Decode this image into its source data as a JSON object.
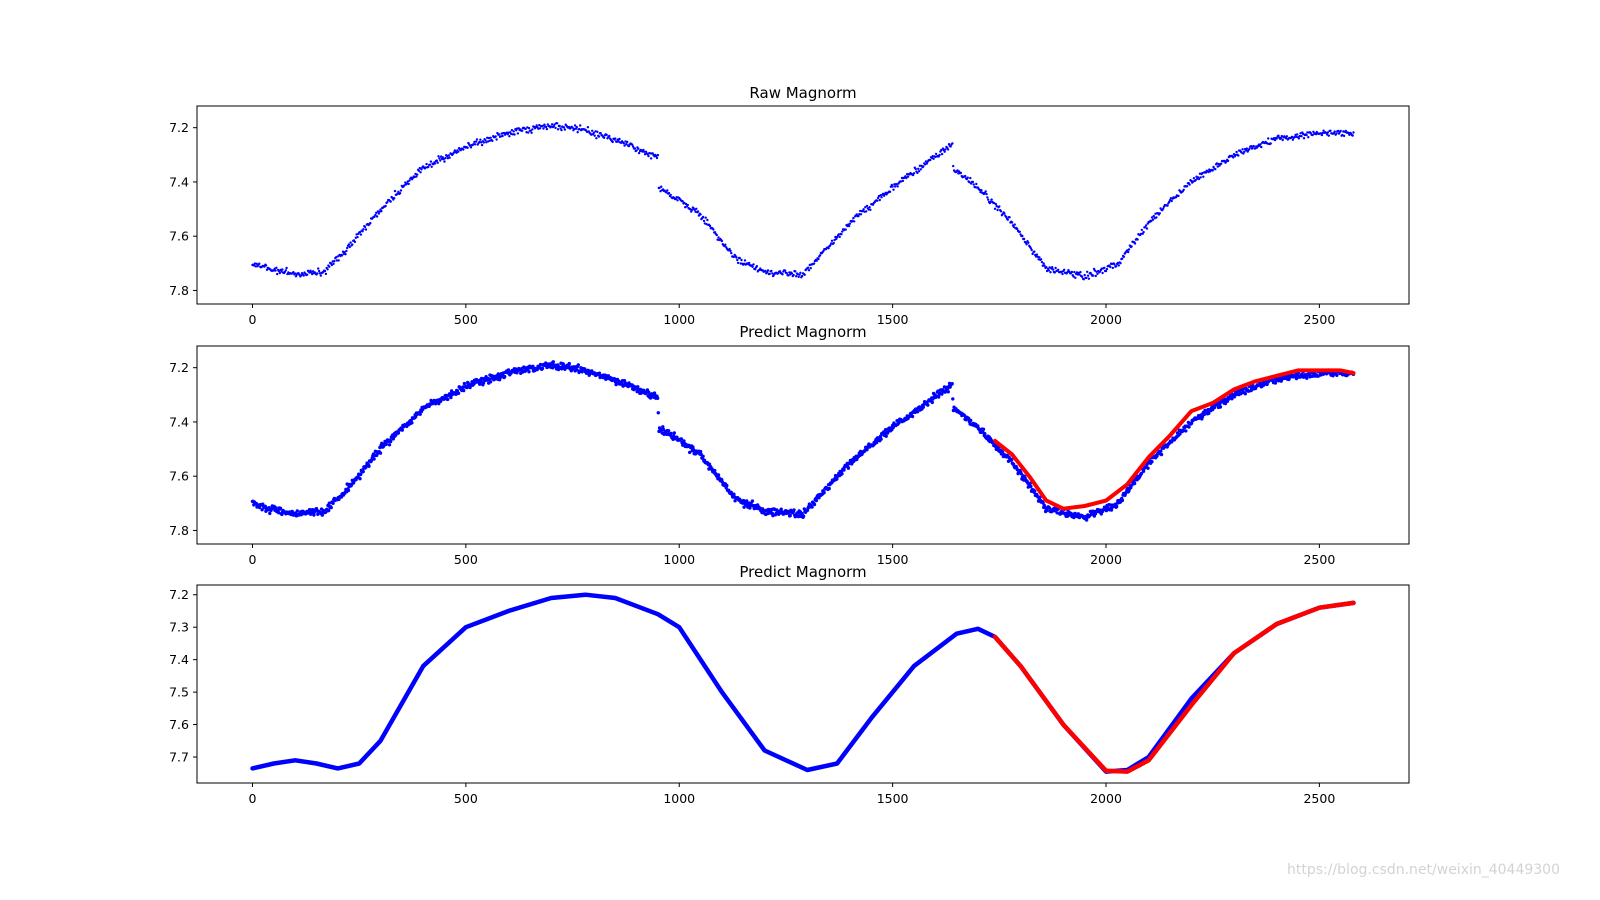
{
  "watermark": "https://blog.csdn.net/weixin_40449300",
  "colors": {
    "raw": "#0000ff",
    "predict": "#ff0000"
  },
  "chart_data": [
    {
      "type": "scatter",
      "title": "Raw Magnorm",
      "xlim": [
        -130,
        2710
      ],
      "ylim": [
        7.85,
        7.12
      ],
      "y_inverted": true,
      "xticks": [
        0,
        500,
        1000,
        1500,
        2000,
        2500
      ],
      "yticks": [
        7.2,
        7.4,
        7.6,
        7.8
      ],
      "ytick_labels": [
        "7.2",
        "7.4",
        "7.6",
        "7.8"
      ],
      "series": [
        {
          "color": "#0000ff",
          "style": "points",
          "noise": 0.012,
          "x_range": [
            0,
            2580
          ],
          "step": 2,
          "breakpoints": [
            [
              0,
              7.7
            ],
            [
              40,
              7.72
            ],
            [
              100,
              7.74
            ],
            [
              170,
              7.73
            ],
            [
              220,
              7.65
            ],
            [
              300,
              7.5
            ],
            [
              400,
              7.35
            ],
            [
              500,
              7.27
            ],
            [
              600,
              7.22
            ],
            [
              700,
              7.19
            ],
            [
              780,
              7.21
            ],
            [
              860,
              7.25
            ],
            [
              950,
              7.31
            ],
            [
              952,
              7.42
            ],
            [
              1050,
              7.52
            ],
            [
              1130,
              7.68
            ],
            [
              1200,
              7.73
            ],
            [
              1290,
              7.74
            ],
            [
              1400,
              7.55
            ],
            [
              1500,
              7.42
            ],
            [
              1580,
              7.33
            ],
            [
              1640,
              7.26
            ],
            [
              1642,
              7.35
            ],
            [
              1700,
              7.42
            ],
            [
              1780,
              7.55
            ],
            [
              1860,
              7.72
            ],
            [
              1950,
              7.75
            ],
            [
              2030,
              7.7
            ],
            [
              2100,
              7.55
            ],
            [
              2200,
              7.4
            ],
            [
              2300,
              7.3
            ],
            [
              2400,
              7.24
            ],
            [
              2500,
              7.22
            ],
            [
              2580,
              7.22
            ]
          ]
        }
      ]
    },
    {
      "type": "scatter",
      "title": "Predict Magnorm",
      "xlim": [
        -130,
        2710
      ],
      "ylim": [
        7.85,
        7.12
      ],
      "y_inverted": true,
      "xticks": [
        0,
        500,
        1000,
        1500,
        2000,
        2500
      ],
      "yticks": [
        7.2,
        7.4,
        7.6,
        7.8
      ],
      "ytick_labels": [
        "7.2",
        "7.4",
        "7.6",
        "7.8"
      ],
      "series": [
        {
          "color": "#0000ff",
          "style": "points",
          "noise": 0.013,
          "x_range": [
            0,
            2580
          ],
          "step": 1.5,
          "breakpoints": [
            [
              0,
              7.7
            ],
            [
              40,
              7.72
            ],
            [
              100,
              7.74
            ],
            [
              170,
              7.73
            ],
            [
              220,
              7.65
            ],
            [
              300,
              7.5
            ],
            [
              400,
              7.35
            ],
            [
              500,
              7.27
            ],
            [
              600,
              7.22
            ],
            [
              700,
              7.19
            ],
            [
              780,
              7.21
            ],
            [
              860,
              7.25
            ],
            [
              950,
              7.31
            ],
            [
              952,
              7.42
            ],
            [
              1050,
              7.52
            ],
            [
              1130,
              7.68
            ],
            [
              1200,
              7.73
            ],
            [
              1290,
              7.74
            ],
            [
              1400,
              7.55
            ],
            [
              1500,
              7.42
            ],
            [
              1580,
              7.33
            ],
            [
              1640,
              7.26
            ],
            [
              1642,
              7.35
            ],
            [
              1700,
              7.42
            ],
            [
              1780,
              7.55
            ],
            [
              1860,
              7.72
            ],
            [
              1950,
              7.75
            ],
            [
              2030,
              7.7
            ],
            [
              2100,
              7.55
            ],
            [
              2200,
              7.4
            ],
            [
              2300,
              7.3
            ],
            [
              2400,
              7.24
            ],
            [
              2500,
              7.22
            ],
            [
              2580,
              7.22
            ]
          ]
        },
        {
          "color": "#ff0000",
          "style": "thick-line",
          "points": [
            [
              1740,
              7.47
            ],
            [
              1780,
              7.52
            ],
            [
              1820,
              7.6
            ],
            [
              1860,
              7.69
            ],
            [
              1900,
              7.72
            ],
            [
              1950,
              7.71
            ],
            [
              2000,
              7.69
            ],
            [
              2050,
              7.63
            ],
            [
              2100,
              7.53
            ],
            [
              2150,
              7.45
            ],
            [
              2200,
              7.36
            ],
            [
              2250,
              7.33
            ],
            [
              2300,
              7.28
            ],
            [
              2350,
              7.25
            ],
            [
              2400,
              7.23
            ],
            [
              2450,
              7.21
            ],
            [
              2500,
              7.21
            ],
            [
              2550,
              7.21
            ],
            [
              2580,
              7.22
            ]
          ]
        }
      ]
    },
    {
      "type": "line",
      "title": "Predict Magnorm",
      "xlim": [
        -130,
        2710
      ],
      "ylim": [
        7.78,
        7.17
      ],
      "y_inverted": true,
      "xticks": [
        0,
        500,
        1000,
        1500,
        2000,
        2500
      ],
      "yticks": [
        7.2,
        7.3,
        7.4,
        7.5,
        7.6,
        7.7
      ],
      "ytick_labels": [
        "7.2",
        "7.3",
        "7.4",
        "7.5",
        "7.6",
        "7.7"
      ],
      "series": [
        {
          "color": "#0000ff",
          "style": "thick-line",
          "points": [
            [
              0,
              7.735
            ],
            [
              50,
              7.72
            ],
            [
              100,
              7.71
            ],
            [
              150,
              7.72
            ],
            [
              200,
              7.735
            ],
            [
              250,
              7.72
            ],
            [
              300,
              7.65
            ],
            [
              400,
              7.42
            ],
            [
              500,
              7.3
            ],
            [
              600,
              7.25
            ],
            [
              700,
              7.21
            ],
            [
              780,
              7.2
            ],
            [
              850,
              7.21
            ],
            [
              950,
              7.26
            ],
            [
              1000,
              7.3
            ],
            [
              1100,
              7.5
            ],
            [
              1200,
              7.68
            ],
            [
              1300,
              7.74
            ],
            [
              1370,
              7.72
            ],
            [
              1450,
              7.58
            ],
            [
              1550,
              7.42
            ],
            [
              1650,
              7.32
            ],
            [
              1700,
              7.305
            ],
            [
              1740,
              7.33
            ],
            [
              1800,
              7.42
            ],
            [
              1900,
              7.6
            ],
            [
              2000,
              7.745
            ],
            [
              2050,
              7.74
            ],
            [
              2100,
              7.7
            ],
            [
              2200,
              7.52
            ],
            [
              2300,
              7.38
            ],
            [
              2400,
              7.29
            ],
            [
              2500,
              7.24
            ],
            [
              2580,
              7.225
            ]
          ]
        },
        {
          "color": "#ff0000",
          "style": "thick-line",
          "points": [
            [
              1740,
              7.33
            ],
            [
              1800,
              7.42
            ],
            [
              1900,
              7.6
            ],
            [
              2000,
              7.742
            ],
            [
              2050,
              7.745
            ],
            [
              2100,
              7.71
            ],
            [
              2200,
              7.54
            ],
            [
              2300,
              7.38
            ],
            [
              2400,
              7.29
            ],
            [
              2500,
              7.24
            ],
            [
              2580,
              7.225
            ]
          ]
        }
      ]
    }
  ]
}
